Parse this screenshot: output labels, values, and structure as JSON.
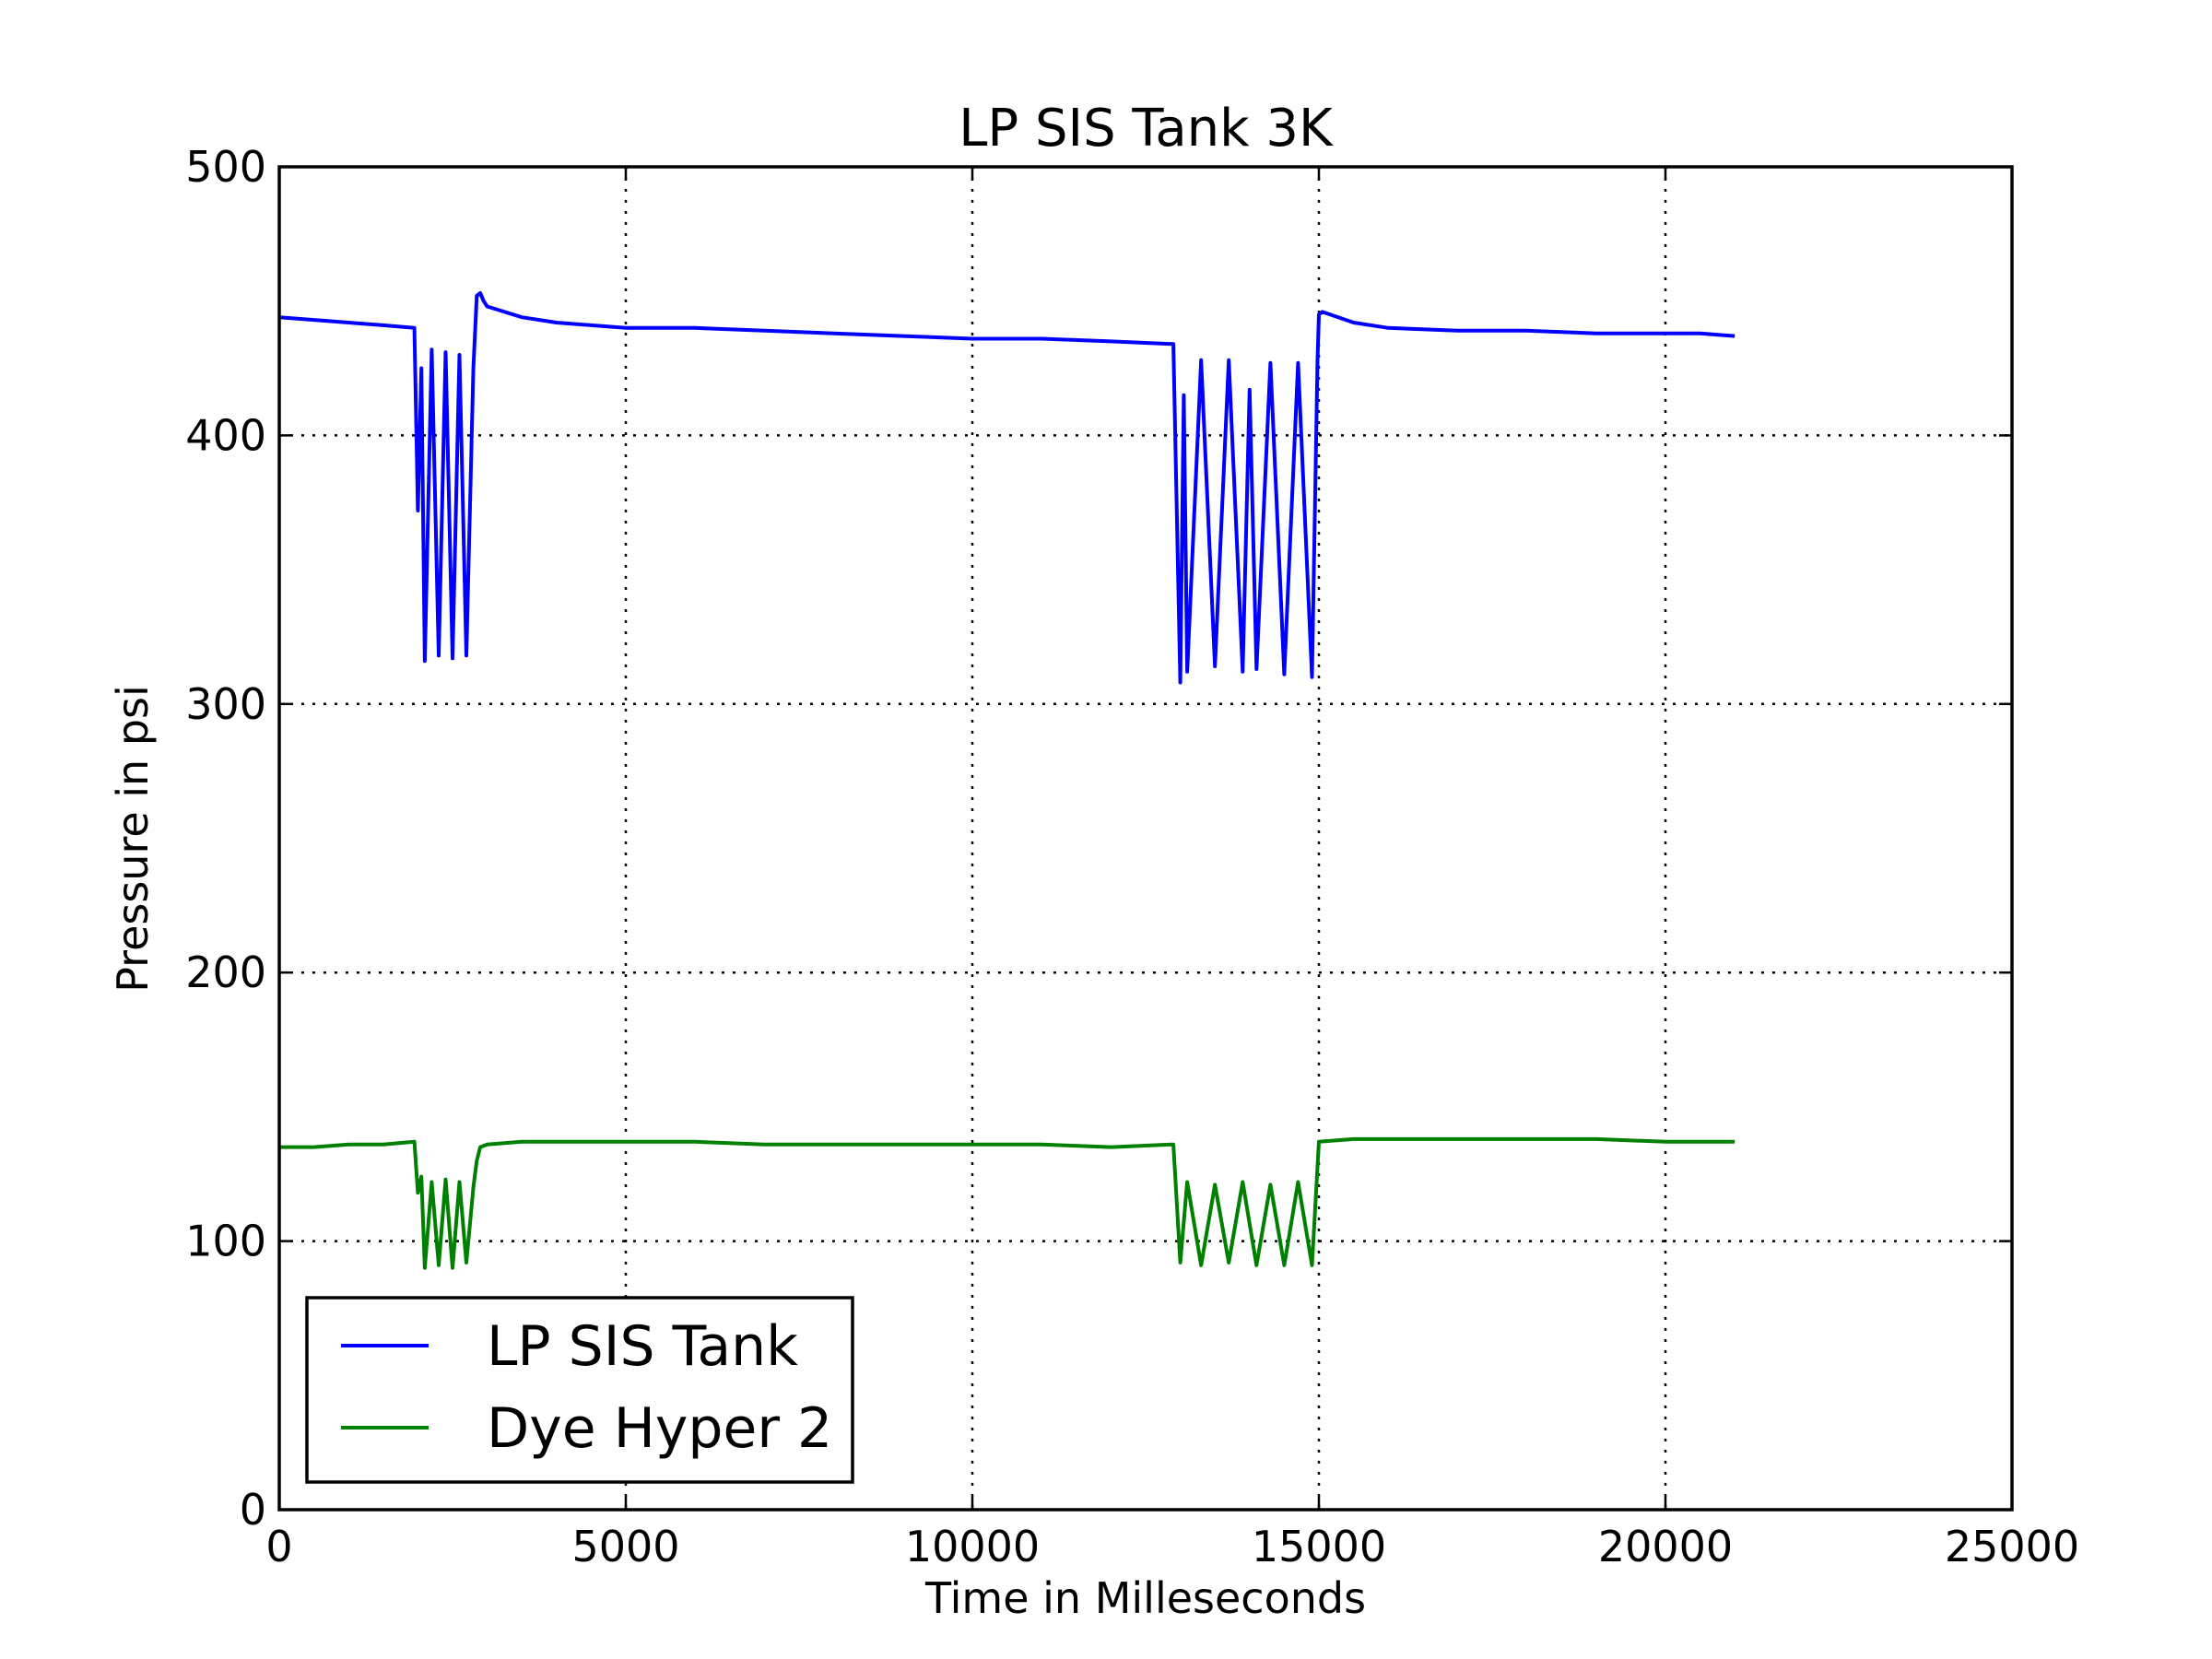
{
  "chart_data": {
    "type": "line",
    "title": "LP SIS Tank 3K",
    "xlabel": "Time in Milleseconds",
    "ylabel": "Pressure in psi",
    "xlim": [
      0,
      25000
    ],
    "ylim": [
      0,
      500
    ],
    "xticks": [
      0,
      5000,
      10000,
      15000,
      20000,
      25000
    ],
    "yticks": [
      0,
      100,
      200,
      300,
      400,
      500
    ],
    "grid": true,
    "legend_position": "lower-left",
    "series": [
      {
        "name": "LP SIS Tank",
        "color": "#0000ff",
        "x": [
          0,
          500,
          1000,
          1500,
          1950,
          2000,
          2050,
          2100,
          2200,
          2300,
          2400,
          2500,
          2600,
          2700,
          2800,
          2850,
          2900,
          2950,
          3000,
          3500,
          4000,
          4500,
          5000,
          6000,
          7000,
          8000,
          9000,
          10000,
          11000,
          12000,
          12900,
          13000,
          13050,
          13100,
          13300,
          13500,
          13700,
          13900,
          14000,
          14100,
          14300,
          14500,
          14700,
          14900,
          14980,
          15000,
          15050,
          15500,
          16000,
          17000,
          18000,
          19000,
          20000,
          20500,
          21000
        ],
        "values": [
          444,
          443,
          442,
          441,
          440,
          372,
          425,
          316,
          432,
          318,
          431,
          317,
          430,
          318,
          425,
          452,
          453,
          450,
          448,
          444,
          442,
          441,
          440,
          440,
          439,
          438,
          437,
          436,
          436,
          435,
          434,
          308,
          415,
          312,
          428,
          314,
          428,
          312,
          417,
          313,
          427,
          311,
          427,
          310,
          428,
          445,
          446,
          442,
          440,
          439,
          439,
          438,
          438,
          438,
          437
        ]
      },
      {
        "name": "Dye Hyper 2",
        "color": "#008000",
        "x": [
          0,
          500,
          1000,
          1500,
          1950,
          2000,
          2050,
          2100,
          2200,
          2300,
          2400,
          2500,
          2600,
          2700,
          2800,
          2850,
          2900,
          3000,
          3500,
          4000,
          5000,
          6000,
          7000,
          8000,
          9000,
          10000,
          11000,
          12000,
          12900,
          13000,
          13100,
          13300,
          13500,
          13700,
          13900,
          14100,
          14300,
          14500,
          14700,
          14900,
          15000,
          15500,
          16000,
          17000,
          18000,
          19000,
          20000,
          21000
        ],
        "values": [
          135,
          135,
          136,
          136,
          137,
          118,
          124,
          90,
          122,
          91,
          123,
          90,
          122,
          92,
          120,
          130,
          135,
          136,
          137,
          137,
          137,
          137,
          136,
          136,
          136,
          136,
          136,
          135,
          136,
          92,
          122,
          91,
          121,
          92,
          122,
          91,
          121,
          91,
          122,
          91,
          137,
          138,
          138,
          138,
          138,
          138,
          137,
          137
        ]
      }
    ]
  }
}
